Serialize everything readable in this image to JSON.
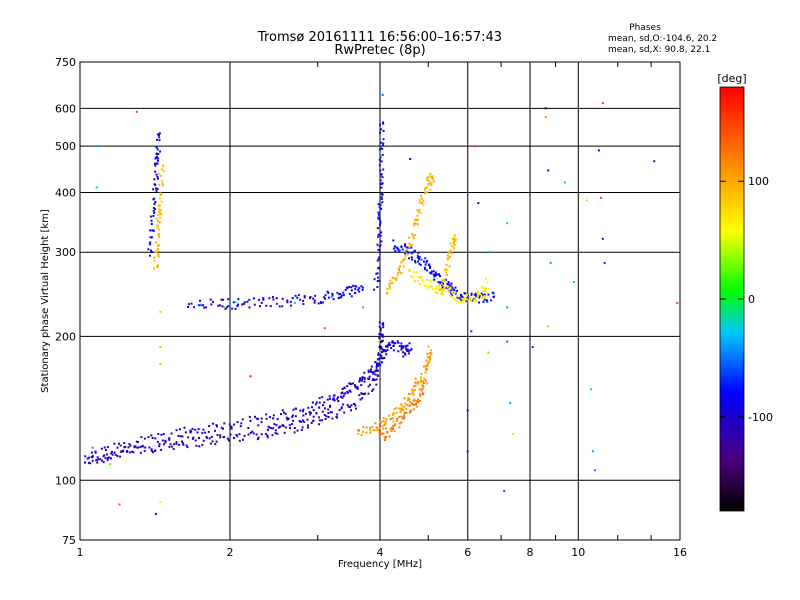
{
  "chart_data": {
    "type": "scatter",
    "title": "Tromsø 20161111 16:56:00–16:57:43",
    "subtitle": "RwPretec (8p)",
    "xlabel": "Frequency [MHz]",
    "ylabel": "Stationary phase Virtual Height [km]",
    "x_scale": "log",
    "y_scale": "log",
    "xlim": [
      1,
      16
    ],
    "ylim": [
      75,
      750
    ],
    "x_ticks": [
      "1",
      "2",
      "4",
      "6",
      "8",
      "10",
      "16"
    ],
    "x_tick_values": [
      1,
      2,
      4,
      6,
      8,
      10,
      16
    ],
    "y_ticks": [
      "75",
      "100",
      "200",
      "300",
      "400",
      "500",
      "600",
      "750"
    ],
    "y_tick_values": [
      75,
      100,
      200,
      300,
      400,
      500,
      600,
      750
    ],
    "grid": true,
    "stats": {
      "heading": "Phases",
      "line_o": "mean, sd,O:-104.6, 20.2",
      "line_x": "mean, sd,X:  90.8, 22.1"
    },
    "colorbar": {
      "label": "[deg]",
      "range": [
        -180,
        180
      ],
      "ticks": [
        "100",
        "0",
        "-100"
      ],
      "tick_values": [
        100,
        0,
        -100
      ],
      "placement": "right"
    },
    "traces": [
      {
        "phase": -120,
        "points": [
          [
            1.02,
            110
          ],
          [
            1.1,
            111
          ],
          [
            1.2,
            114
          ],
          [
            1.3,
            116
          ],
          [
            1.45,
            118
          ],
          [
            1.6,
            120
          ],
          [
            1.8,
            121
          ],
          [
            2.0,
            123
          ],
          [
            2.3,
            125
          ],
          [
            2.6,
            128
          ],
          [
            3.0,
            133
          ],
          [
            3.3,
            138
          ],
          [
            3.6,
            146
          ],
          [
            3.9,
            160
          ],
          [
            4.0,
            178
          ],
          [
            4.02,
            200
          ],
          [
            4.03,
            215
          ]
        ]
      },
      {
        "phase": -115,
        "points": [
          [
            1.05,
            113
          ],
          [
            1.2,
            118
          ],
          [
            1.4,
            122
          ],
          [
            1.6,
            126
          ],
          [
            1.8,
            128
          ],
          [
            2.1,
            131
          ],
          [
            2.4,
            135
          ],
          [
            2.8,
            141
          ],
          [
            3.2,
            148
          ],
          [
            3.6,
            158
          ],
          [
            3.9,
            170
          ]
        ]
      },
      {
        "phase": -110,
        "points": [
          [
            2.4,
            128
          ],
          [
            2.7,
            133
          ],
          [
            3.0,
            140
          ],
          [
            3.3,
            150
          ],
          [
            3.6,
            160
          ],
          [
            3.9,
            170
          ],
          [
            4.0,
            180
          ],
          [
            4.1,
            188
          ],
          [
            4.3,
            192
          ],
          [
            4.5,
            186
          ],
          [
            4.6,
            190
          ]
        ]
      },
      {
        "phase": -105,
        "points": [
          [
            1.65,
            235
          ],
          [
            1.9,
            234
          ],
          [
            2.1,
            234
          ],
          [
            2.4,
            236
          ],
          [
            2.7,
            238
          ],
          [
            3.0,
            240
          ],
          [
            3.3,
            244
          ],
          [
            3.5,
            249
          ],
          [
            3.7,
            254
          ]
        ]
      },
      {
        "phase": -105,
        "points": [
          [
            3.92,
            250
          ],
          [
            3.98,
            300
          ],
          [
            4.0,
            350
          ],
          [
            4.02,
            400
          ],
          [
            4.03,
            480
          ],
          [
            4.04,
            560
          ]
        ]
      },
      {
        "phase": -100,
        "points": [
          [
            4.25,
            310
          ],
          [
            4.5,
            304
          ],
          [
            4.7,
            295
          ],
          [
            4.9,
            285
          ],
          [
            5.1,
            272
          ],
          [
            5.3,
            262
          ],
          [
            5.5,
            254
          ],
          [
            5.6,
            248
          ],
          [
            5.8,
            242
          ],
          [
            6.0,
            240
          ],
          [
            6.4,
            240
          ],
          [
            6.8,
            243
          ]
        ]
      },
      {
        "phase": 100,
        "points": [
          [
            4.1,
            245
          ],
          [
            4.3,
            265
          ],
          [
            4.5,
            292
          ],
          [
            4.7,
            340
          ],
          [
            4.85,
            380
          ],
          [
            5.0,
            420
          ],
          [
            5.1,
            430
          ]
        ]
      },
      {
        "phase": 70,
        "points": [
          [
            4.6,
            270
          ],
          [
            4.9,
            260
          ],
          [
            5.2,
            252
          ],
          [
            5.5,
            248
          ],
          [
            5.8,
            240
          ],
          [
            6.1,
            238
          ],
          [
            6.4,
            244
          ],
          [
            6.6,
            260
          ]
        ]
      },
      {
        "phase": 90,
        "points": [
          [
            5.3,
            250
          ],
          [
            5.45,
            280
          ],
          [
            5.6,
            310
          ],
          [
            5.7,
            330
          ]
        ]
      },
      {
        "phase": 110,
        "points": [
          [
            3.6,
            125
          ],
          [
            3.9,
            128
          ],
          [
            4.1,
            132
          ],
          [
            4.3,
            138
          ],
          [
            4.5,
            146
          ],
          [
            4.7,
            156
          ],
          [
            4.9,
            168
          ],
          [
            5.0,
            178
          ],
          [
            5.05,
            188
          ]
        ]
      },
      {
        "phase": 125,
        "points": [
          [
            4.0,
            123
          ],
          [
            4.2,
            127
          ],
          [
            4.4,
            133
          ],
          [
            4.6,
            141
          ],
          [
            4.8,
            151
          ],
          [
            4.95,
            161
          ]
        ]
      },
      {
        "phase": -105,
        "points": [
          [
            1.38,
            300
          ],
          [
            1.4,
            350
          ],
          [
            1.42,
            420
          ],
          [
            1.43,
            480
          ],
          [
            1.44,
            530
          ]
        ]
      },
      {
        "phase": 95,
        "points": [
          [
            1.42,
            280
          ],
          [
            1.43,
            310
          ],
          [
            1.44,
            350
          ],
          [
            1.45,
            390
          ],
          [
            1.46,
            460
          ]
        ]
      }
    ],
    "scattered": [
      {
        "x": 1.08,
        "y": 500,
        "phase": -60
      },
      {
        "x": 1.3,
        "y": 590,
        "phase": 150
      },
      {
        "x": 1.08,
        "y": 410,
        "phase": -40
      },
      {
        "x": 1.45,
        "y": 190,
        "phase": 95
      },
      {
        "x": 1.45,
        "y": 175,
        "phase": 100
      },
      {
        "x": 1.45,
        "y": 225,
        "phase": 90
      },
      {
        "x": 1.42,
        "y": 85,
        "phase": -100
      },
      {
        "x": 1.45,
        "y": 90,
        "phase": 70
      },
      {
        "x": 1.2,
        "y": 89,
        "phase": 140
      },
      {
        "x": 1.15,
        "y": 108,
        "phase": 20
      },
      {
        "x": 1.06,
        "y": 117,
        "phase": -60
      },
      {
        "x": 1.75,
        "y": 233,
        "phase": -60
      },
      {
        "x": 1.95,
        "y": 230,
        "phase": 20
      },
      {
        "x": 2.05,
        "y": 236,
        "phase": -40
      },
      {
        "x": 2.2,
        "y": 165,
        "phase": 170
      },
      {
        "x": 3.1,
        "y": 208,
        "phase": 150
      },
      {
        "x": 3.7,
        "y": 230,
        "phase": 130
      },
      {
        "x": 4.05,
        "y": 640,
        "phase": -70
      },
      {
        "x": 4.02,
        "y": 495,
        "phase": -90
      },
      {
        "x": 4.0,
        "y": 185,
        "phase": 30
      },
      {
        "x": 3.98,
        "y": 195,
        "phase": 80
      },
      {
        "x": 4.6,
        "y": 470,
        "phase": -100
      },
      {
        "x": 5.05,
        "y": 405,
        "phase": 90
      },
      {
        "x": 6.2,
        "y": 500,
        "phase": 160
      },
      {
        "x": 6.3,
        "y": 380,
        "phase": -120
      },
      {
        "x": 6.6,
        "y": 300,
        "phase": -60
      },
      {
        "x": 6.1,
        "y": 205,
        "phase": -90
      },
      {
        "x": 6.0,
        "y": 140,
        "phase": -100
      },
      {
        "x": 6.0,
        "y": 115,
        "phase": -110
      },
      {
        "x": 6.6,
        "y": 185,
        "phase": 20
      },
      {
        "x": 7.2,
        "y": 345,
        "phase": -40
      },
      {
        "x": 7.2,
        "y": 230,
        "phase": -60
      },
      {
        "x": 7.2,
        "y": 195,
        "phase": -70
      },
      {
        "x": 7.1,
        "y": 95,
        "phase": -80
      },
      {
        "x": 7.3,
        "y": 145,
        "phase": -60
      },
      {
        "x": 7.4,
        "y": 125,
        "phase": 40
      },
      {
        "x": 8.1,
        "y": 190,
        "phase": -90
      },
      {
        "x": 8.6,
        "y": 600,
        "phase": -150
      },
      {
        "x": 8.6,
        "y": 575,
        "phase": 120
      },
      {
        "x": 8.7,
        "y": 445,
        "phase": -100
      },
      {
        "x": 8.8,
        "y": 285,
        "phase": -60
      },
      {
        "x": 8.7,
        "y": 210,
        "phase": 100
      },
      {
        "x": 9.4,
        "y": 420,
        "phase": -50
      },
      {
        "x": 9.8,
        "y": 260,
        "phase": -40
      },
      {
        "x": 10.6,
        "y": 155,
        "phase": -50
      },
      {
        "x": 10.7,
        "y": 115,
        "phase": -60
      },
      {
        "x": 10.8,
        "y": 105,
        "phase": -70
      },
      {
        "x": 11.1,
        "y": 390,
        "phase": 150
      },
      {
        "x": 11.2,
        "y": 320,
        "phase": -100
      },
      {
        "x": 11.3,
        "y": 285,
        "phase": -90
      },
      {
        "x": 11.2,
        "y": 615,
        "phase": 160
      },
      {
        "x": 11.0,
        "y": 490,
        "phase": -110
      },
      {
        "x": 14.2,
        "y": 465,
        "phase": -130
      },
      {
        "x": 15.8,
        "y": 235,
        "phase": 160
      },
      {
        "x": 10.4,
        "y": 385,
        "phase": 90
      },
      {
        "x": 2.7,
        "y": 235,
        "phase": -50
      },
      {
        "x": 3.2,
        "y": 242,
        "phase": -60
      }
    ]
  }
}
